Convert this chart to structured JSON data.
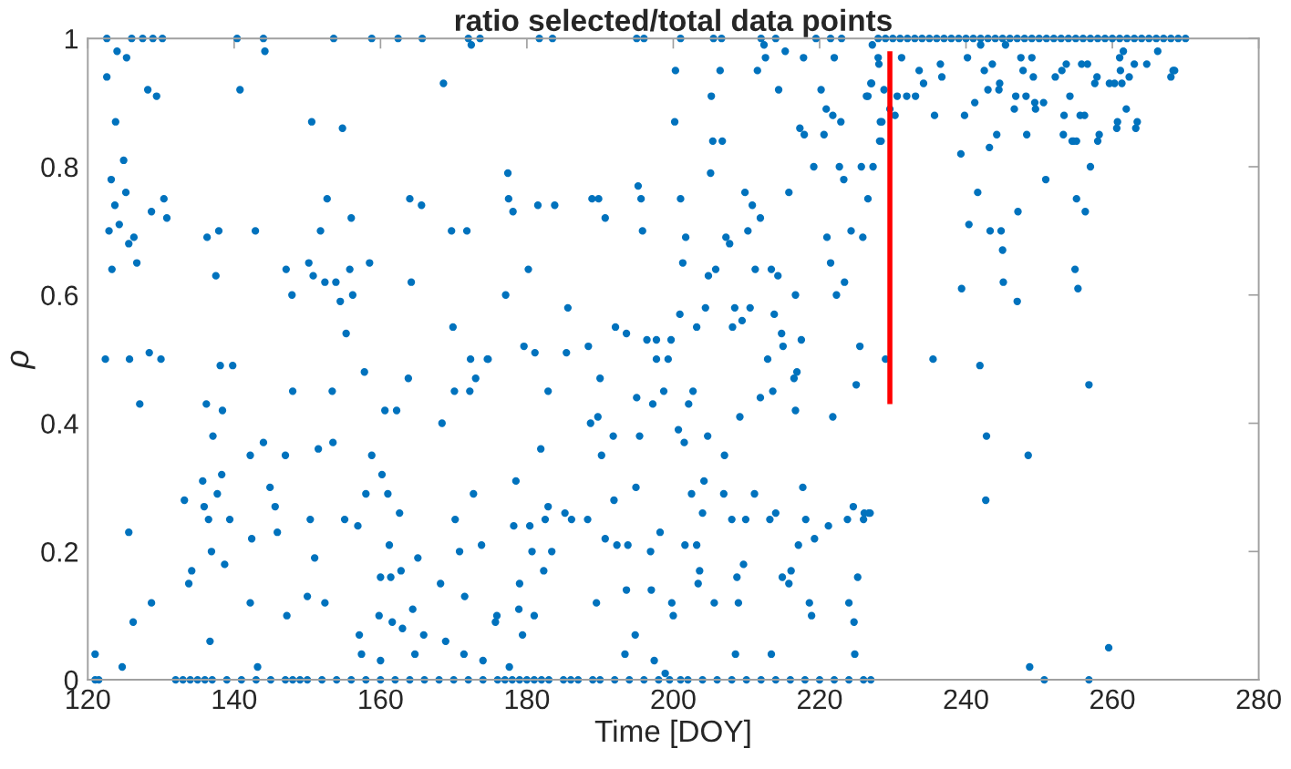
{
  "chart_data": {
    "type": "scatter",
    "title": "ratio selected/total data points",
    "xlabel": "Time [DOY]",
    "ylabel": "ρ",
    "xlim": [
      120,
      280
    ],
    "xticks": [
      120,
      140,
      160,
      180,
      200,
      220,
      240,
      260,
      280
    ],
    "ylim": [
      0,
      1
    ],
    "yticks": [
      0,
      0.2,
      0.4,
      0.6,
      0.8,
      1
    ],
    "marker": "circle",
    "grid": false,
    "series": [
      {
        "color": "#0072bd",
        "x": [
          122.6,
          124.0,
          125.3,
          123.8,
          124.9,
          123.2,
          123.7,
          125.2,
          122.9,
          124.3,
          126.3,
          123.3,
          125.6,
          126.7,
          128.7,
          130.4,
          130.8,
          128.2,
          129.4,
          122.4,
          125.7,
          128.4,
          130.0,
          127.1,
          125.6,
          126.2,
          128.7,
          121.0,
          124.7
        ],
        "values": [
          0.94,
          0.98,
          0.97,
          0.87,
          0.81,
          0.78,
          0.74,
          0.76,
          0.7,
          0.71,
          0.69,
          0.64,
          0.68,
          0.65,
          0.73,
          0.75,
          0.72,
          0.92,
          0.91,
          0.5,
          0.5,
          0.51,
          0.5,
          0.43,
          0.23,
          0.09,
          0.12,
          0.04,
          0.02
        ]
      },
      {
        "color": "#0072bd",
        "x": [
          136.3,
          137.9,
          142.9,
          137.5,
          138.1,
          139.8,
          136.2,
          138.4,
          137.1,
          144.0,
          142.2,
          135.7,
          133.2,
          138.3,
          137.7,
          135.9,
          136.5,
          139.4,
          136.9,
          138.7,
          134.2,
          133.8,
          142.2,
          136.7,
          143.2,
          142.4,
          144.9,
          145.6,
          145.9,
          147.0,
          147.2,
          147.1,
          147.9,
          148.0,
          150.6,
          154.8,
          152.7,
          150.8,
          150.2,
          151.8,
          152.4,
          153.9,
          154.5,
          155.3,
          155.8,
          156.2,
          156.0,
          158.5,
          157.8,
          153.4,
          153.5,
          151.5,
          150.4,
          155.1,
          151.0,
          150.0,
          152.4,
          156.9,
          158.0,
          158.8,
          160.2,
          160.6,
          162.2,
          161.0,
          162.6,
          161.2,
          160.0,
          161.4,
          162.8,
          157.1,
          157.4,
          160.0,
          159.8,
          161.6,
          163.0,
          164.4,
          164.7,
          165.1,
          165.9,
          163.8,
          164.2,
          164.0,
          165.6,
          168.6,
          168.4,
          168.2,
          168.9,
          169.9,
          169.7,
          171.8,
          170.1,
          172.3,
          172.2,
          173.0,
          172.7,
          170.2,
          170.8,
          171.5,
          171.4,
          173.8,
          174.0,
          172.4,
          174.7,
          175.9,
          144.2,
          140.8
        ],
        "values": [
          0.69,
          0.7,
          0.7,
          0.63,
          0.49,
          0.49,
          0.43,
          0.42,
          0.38,
          0.37,
          0.35,
          0.31,
          0.28,
          0.32,
          0.29,
          0.27,
          0.25,
          0.25,
          0.2,
          0.18,
          0.17,
          0.15,
          0.12,
          0.06,
          0.02,
          0.22,
          0.3,
          0.27,
          0.23,
          0.35,
          0.1,
          0.64,
          0.6,
          0.45,
          0.87,
          0.86,
          0.75,
          0.63,
          0.65,
          0.7,
          0.62,
          0.62,
          0.59,
          0.54,
          0.64,
          0.6,
          0.72,
          0.65,
          0.48,
          0.45,
          0.37,
          0.36,
          0.25,
          0.25,
          0.19,
          0.13,
          0.12,
          0.24,
          0.29,
          0.35,
          0.32,
          0.42,
          0.42,
          0.29,
          0.26,
          0.21,
          0.16,
          0.16,
          0.17,
          0.07,
          0.04,
          0.03,
          0.1,
          0.09,
          0.08,
          0.11,
          0.04,
          0.19,
          0.07,
          0.47,
          0.62,
          0.75,
          0.74,
          0.93,
          0.4,
          0.15,
          0.06,
          0.55,
          0.7,
          0.7,
          0.45,
          0.5,
          0.45,
          0.47,
          0.29,
          0.25,
          0.2,
          0.13,
          0.04,
          0.21,
          0.03,
          0.99,
          0.5,
          0.1,
          0.98,
          0.92
        ]
      },
      {
        "color": "#0072bd",
        "x": [
          177.4,
          177.5,
          178.1,
          177.1,
          174.6,
          180.2,
          181.5,
          183.8,
          179.6,
          181.1,
          185.6,
          185.4,
          182.9,
          181.9,
          178.5,
          178.2,
          180.4,
          182.9,
          182.5,
          185.2,
          186.1,
          180.7,
          182.3,
          183.4,
          179.0,
          178.9,
          181.0,
          179.4,
          175.7,
          177.6,
          188.9,
          189.8,
          190.7,
          188.4,
          190.0,
          188.7,
          189.7,
          190.2,
          191.8,
          192.1,
          193.6,
          188.3,
          190.7,
          191.9,
          192.3,
          193.8,
          189.5,
          193.6,
          194.8,
          193.4,
          195.2,
          195.6,
          195.8,
          195.0,
          195.4,
          194.9,
          196.4,
          197.7,
          197.7,
          197.2,
          198.7,
          199.3,
          199.7,
          196.9,
          198.2,
          197.0,
          197.4,
          199.8,
          200.0,
          200.2,
          200.3,
          201.0,
          200.9,
          201.7,
          201.3,
          200.7,
          201.5,
          202.1,
          202.7,
          201.6,
          202.5,
          203.2,
          203.6,
          203.4,
          203.2,
          204.0,
          204.2,
          204.4,
          204.7,
          204.8,
          205.1,
          205.2,
          205.4,
          206.7,
          206.4,
          205.8,
          205.6,
          207.2,
          207.0,
          206.9,
          207.7,
          208.0,
          208.1,
          208.4,
          208.5,
          208.7,
          208.9,
          209.1,
          209.4,
          209.6,
          209.8,
          210.2,
          209.9,
          210.5,
          210.8,
          211.1,
          211.2,
          211.5,
          211.9,
          211.9,
          212.4,
          212.6,
          212.9,
          213.2,
          213.4,
          213.4,
          213.6,
          213.8,
          214.0,
          214.3,
          214.4,
          214.8,
          215.0,
          214.9,
          215.3,
          215.8,
          215.8,
          216.1,
          216.5,
          216.7,
          216.7,
          216.9,
          217.1,
          217.3,
          217.5,
          217.7,
          217.8,
          217.9,
          218.1,
          218.6,
          218.9,
          219.2,
          219.3,
          220.2,
          220.6,
          220.9,
          221.0,
          221.2,
          221.5,
          221.8,
          221.8,
          222.0,
          222.3,
          222.7,
          222.9,
          223.3,
          223.4,
          223.8,
          224.0,
          224.3,
          224.6,
          224.7,
          224.8,
          225.0,
          225.2,
          225.5,
          225.7,
          225.9,
          226.0,
          226.6,
          226.6,
          226.9,
          227.1,
          227.3,
          228.1,
          228.4,
          228.5,
          228.8,
          229.0,
          198.9
        ],
        "values": [
          0.79,
          0.75,
          0.73,
          0.6,
          0.5,
          0.64,
          0.74,
          0.74,
          0.52,
          0.51,
          0.58,
          0.51,
          0.45,
          0.36,
          0.31,
          0.24,
          0.24,
          0.27,
          0.25,
          0.26,
          0.25,
          0.2,
          0.17,
          0.2,
          0.15,
          0.11,
          0.1,
          0.07,
          0.09,
          0.02,
          0.75,
          0.75,
          0.72,
          0.52,
          0.47,
          0.4,
          0.41,
          0.35,
          0.38,
          0.55,
          0.54,
          0.25,
          0.22,
          0.28,
          0.21,
          0.21,
          0.12,
          0.14,
          0.07,
          0.04,
          0.77,
          0.75,
          0.7,
          0.44,
          0.38,
          0.3,
          0.53,
          0.53,
          0.5,
          0.43,
          0.45,
          0.5,
          0.53,
          0.2,
          0.23,
          0.14,
          0.03,
          0.12,
          0.1,
          0.87,
          0.95,
          0.75,
          0.57,
          0.69,
          0.65,
          0.39,
          0.37,
          0.43,
          0.45,
          0.21,
          0.29,
          0.21,
          0.17,
          0.15,
          0.55,
          0.26,
          0.31,
          0.58,
          0.38,
          0.63,
          0.79,
          0.91,
          0.84,
          0.84,
          0.95,
          0.64,
          0.12,
          0.69,
          0.35,
          0.29,
          0.68,
          0.25,
          0.55,
          0.58,
          0.04,
          0.16,
          0.12,
          0.41,
          0.56,
          0.18,
          0.76,
          0.7,
          0.25,
          0.58,
          0.74,
          0.29,
          0.64,
          0.95,
          0.72,
          0.44,
          0.99,
          0.97,
          0.5,
          0.25,
          0.04,
          0.64,
          0.45,
          0.57,
          0.26,
          0.63,
          0.92,
          0.54,
          0.52,
          0.16,
          0.98,
          0.76,
          0.15,
          0.17,
          0.47,
          0.42,
          0.6,
          0.48,
          0.21,
          0.86,
          0.53,
          0.3,
          0.97,
          0.85,
          0.25,
          0.12,
          0.1,
          0.8,
          0.22,
          0.92,
          0.85,
          0.89,
          0.69,
          0.24,
          0.65,
          0.41,
          0.88,
          0.97,
          0.6,
          0.8,
          0.87,
          0.78,
          0.62,
          0.25,
          0.12,
          0.7,
          0.27,
          0.09,
          0.04,
          0.46,
          0.16,
          0.52,
          0.8,
          0.69,
          0.25,
          0.75,
          0.91,
          0.26,
          0.93,
          0.8,
          0.96,
          0.84,
          0.87,
          0.92,
          0.5,
          0.01
        ]
      },
      {
        "color": "#0072bd",
        "x": [
          227.2,
          228.0,
          226.4,
          227.0,
          228.3,
          228.2,
          229.6,
          230.3,
          230.6,
          231.2,
          231.9,
          233.1,
          233.6,
          234.2,
          235.7,
          236.5,
          236.7,
          235.5,
          239.3,
          239.4,
          239.8,
          240.2,
          240.4,
          241.2,
          241.6,
          241.9,
          242.0,
          242.5,
          242.8,
          242.7,
          243.0,
          243.2,
          243.3,
          243.6,
          244.2,
          244.5,
          244.6,
          244.8,
          245.0,
          245.1,
          245.4,
          246.6,
          246.8,
          247.1,
          247.0,
          247.5,
          247.8,
          248.2,
          248.3,
          248.5,
          248.7,
          249.0,
          249.2,
          249.4,
          249.5,
          250.6,
          250.9,
          250.7,
          252.2,
          253.1,
          253.3,
          253.4,
          253.7,
          254.2,
          254.5,
          254.7,
          255.1,
          254.9,
          255.1,
          255.3,
          255.6,
          255.8,
          256.2,
          256.3,
          256.6,
          256.8,
          256.8,
          257.0,
          257.6,
          257.9,
          258.0,
          258.2,
          259.6,
          259.5,
          260.3,
          260.6,
          260.7,
          261.0,
          261.1,
          261.3,
          261.5,
          261.9,
          262.3,
          263.0,
          263.2,
          263.4,
          264.7,
          266.2,
          268.0,
          268.3,
          268.5,
          226.1,
          226.7
        ],
        "values": [
          0.99,
          0.97,
          0.91,
          0.93,
          0.87,
          0.84,
          0.89,
          0.88,
          0.91,
          0.97,
          0.91,
          0.91,
          0.95,
          0.93,
          0.88,
          0.96,
          0.94,
          0.5,
          0.82,
          0.61,
          0.88,
          0.97,
          0.71,
          0.9,
          0.76,
          0.49,
          0.99,
          0.95,
          0.38,
          0.28,
          0.92,
          0.83,
          0.7,
          0.96,
          0.85,
          0.92,
          0.93,
          0.7,
          0.67,
          0.62,
          0.99,
          0.89,
          0.91,
          0.73,
          0.59,
          0.97,
          0.95,
          0.91,
          0.85,
          0.35,
          0.02,
          0.97,
          0.94,
          0.9,
          0.89,
          0.9,
          0.78,
          0.0,
          0.94,
          0.95,
          0.85,
          0.88,
          0.96,
          0.91,
          0.84,
          0.84,
          0.84,
          0.64,
          0.75,
          0.61,
          0.88,
          0.96,
          0.88,
          0.73,
          0.96,
          0.46,
          0.0,
          0.8,
          0.93,
          0.94,
          0.84,
          0.85,
          0.93,
          0.05,
          0.93,
          0.86,
          0.87,
          0.97,
          0.95,
          0.93,
          0.98,
          0.89,
          0.94,
          0.96,
          0.86,
          0.87,
          0.96,
          0.98,
          0.94,
          0.95,
          0.95,
          0.26,
          0.26
        ]
      },
      {
        "color": "#0072bd",
        "x": [
          122.6,
          126.0,
          127.5,
          128.9,
          130.2,
          140.4,
          144.0,
          153.6,
          158.8,
          162.4,
          165.7,
          172.0,
          173.6,
          181.7,
          183.5,
          195.0,
          196.0,
          201.0,
          205.5,
          206.6,
          212.0,
          214.0,
          219.5,
          221.5,
          223.0,
          228,
          229,
          230,
          231,
          232,
          233,
          234,
          235,
          236,
          237,
          238,
          239,
          240,
          241,
          242,
          243,
          244,
          245,
          246,
          247,
          248,
          249,
          250,
          251,
          252,
          253,
          254,
          255,
          256,
          257,
          258,
          259,
          260,
          261,
          262,
          263,
          264,
          265,
          266,
          267,
          268,
          269,
          270
        ],
        "values": [
          1,
          1,
          1,
          1,
          1,
          1,
          1,
          1,
          1,
          1,
          1,
          1,
          1,
          1,
          1,
          1,
          1,
          1,
          1,
          1,
          1,
          1,
          1,
          1,
          1,
          1,
          1,
          1,
          1,
          1,
          1,
          1,
          1,
          1,
          1,
          1,
          1,
          1,
          1,
          1,
          1,
          1,
          1,
          1,
          1,
          1,
          1,
          1,
          1,
          1,
          1,
          1,
          1,
          1,
          1,
          1,
          1,
          1,
          1,
          1,
          1,
          1,
          1,
          1,
          1,
          1,
          1,
          1
        ]
      },
      {
        "color": "#0072bd",
        "x": [
          121.0,
          121.5,
          132,
          133,
          134,
          135,
          136,
          137,
          139,
          141,
          143,
          145,
          147,
          148,
          149,
          150,
          152,
          154,
          156,
          158,
          160,
          162,
          164,
          166,
          168,
          170,
          172,
          174,
          176,
          177,
          178,
          179,
          180,
          181,
          182,
          183,
          185,
          186,
          187,
          189,
          190,
          192,
          194,
          196,
          198,
          199.5,
          201,
          202,
          204,
          206,
          208,
          210,
          212,
          214,
          216,
          218,
          220,
          222,
          224,
          226,
          227
        ],
        "values": [
          0,
          0,
          0,
          0,
          0,
          0,
          0,
          0,
          0,
          0,
          0,
          0,
          0,
          0,
          0,
          0,
          0,
          0,
          0,
          0,
          0,
          0,
          0,
          0,
          0,
          0,
          0,
          0,
          0,
          0,
          0,
          0,
          0,
          0,
          0,
          0,
          0,
          0,
          0,
          0,
          0,
          0,
          0,
          0,
          0,
          0,
          0,
          0,
          0,
          0,
          0,
          0,
          0,
          0,
          0,
          0,
          0,
          0,
          0,
          0,
          0
        ]
      },
      {
        "type": "line",
        "color": "#ff0000",
        "line_style": "solid",
        "marker": "none",
        "x": [
          229.6,
          229.6
        ],
        "values": [
          0.43,
          0.98
        ]
      }
    ]
  }
}
